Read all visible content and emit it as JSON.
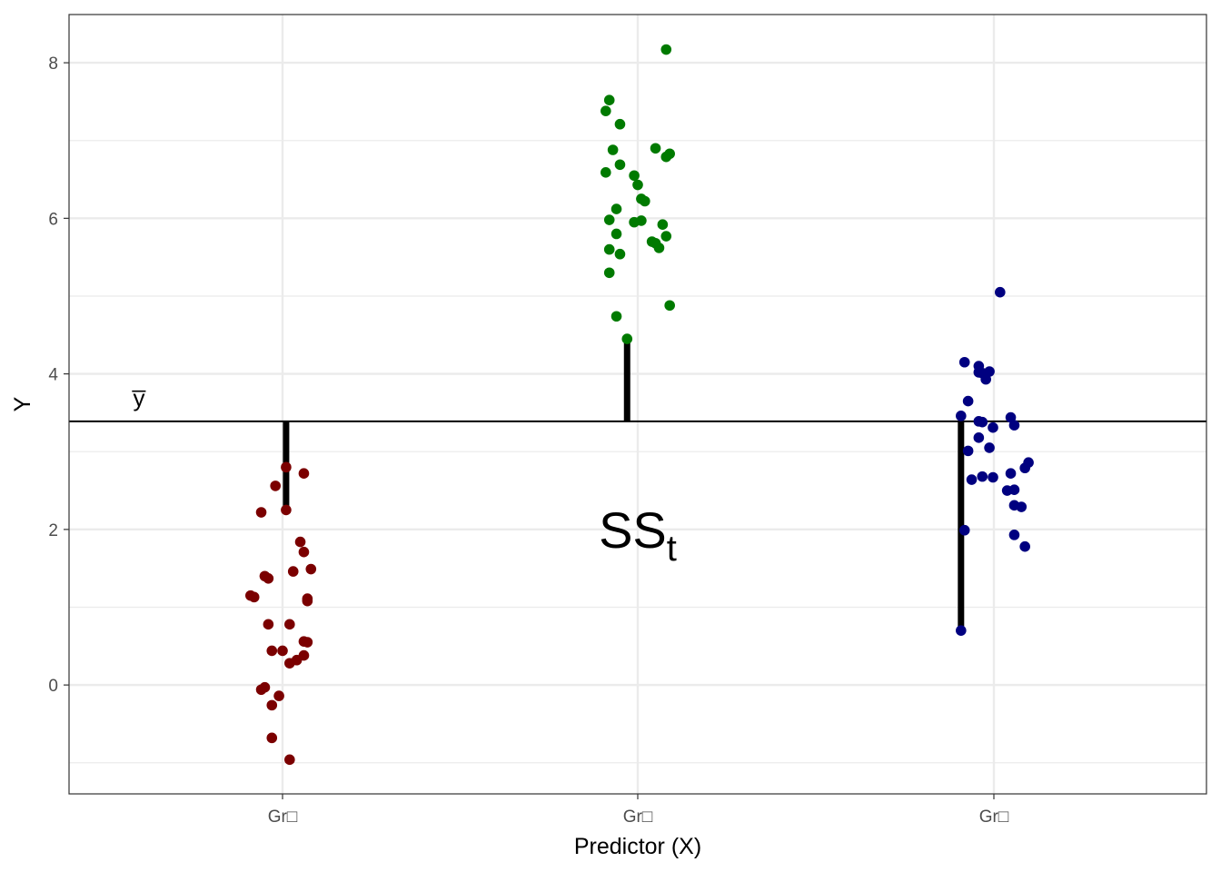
{
  "chart_data": {
    "type": "scatter",
    "title": "",
    "xlabel": "Predictor (X)",
    "ylabel": "Y",
    "categories": [
      "Gr□",
      "Gr□",
      "Gr□"
    ],
    "ylim": [
      -1.4,
      8.62
    ],
    "y_ticks": [
      0,
      2,
      4,
      6,
      8
    ],
    "y_tick_labels": [
      "0",
      "2",
      "4",
      "6",
      "8"
    ],
    "grid": true,
    "legend": "none",
    "grand_mean": 3.39,
    "mean_label": "y̅",
    "annotation": {
      "base": "SS",
      "subscript": "t",
      "x_group": 2,
      "y": 2.0
    },
    "colors": [
      "#7b0000",
      "#007a00",
      "#000080"
    ],
    "series": [
      {
        "group": 1,
        "points": [
          [
            0.98,
            2.56
          ],
          [
            0.94,
            2.22
          ],
          [
            1.01,
            2.8
          ],
          [
            1.06,
            2.72
          ],
          [
            1.01,
            2.25
          ],
          [
            1.05,
            1.84
          ],
          [
            1.06,
            1.71
          ],
          [
            1.08,
            1.49
          ],
          [
            1.03,
            1.46
          ],
          [
            0.95,
            1.4
          ],
          [
            0.96,
            1.37
          ],
          [
            0.91,
            1.15
          ],
          [
            0.92,
            1.13
          ],
          [
            1.07,
            1.11
          ],
          [
            1.07,
            1.08
          ],
          [
            0.96,
            0.78
          ],
          [
            1.02,
            0.78
          ],
          [
            1.06,
            0.56
          ],
          [
            1.07,
            0.55
          ],
          [
            0.97,
            0.44
          ],
          [
            1.0,
            0.44
          ],
          [
            1.06,
            0.38
          ],
          [
            1.04,
            0.32
          ],
          [
            1.02,
            0.28
          ],
          [
            0.95,
            -0.03
          ],
          [
            0.94,
            -0.06
          ],
          [
            0.99,
            -0.14
          ],
          [
            0.97,
            -0.26
          ],
          [
            0.97,
            -0.68
          ],
          [
            1.02,
            -0.96
          ]
        ]
      },
      {
        "group": 2,
        "points": [
          [
            2.08,
            8.17
          ],
          [
            1.92,
            7.52
          ],
          [
            1.91,
            7.38
          ],
          [
            1.95,
            7.21
          ],
          [
            1.93,
            6.88
          ],
          [
            2.05,
            6.9
          ],
          [
            2.09,
            6.83
          ],
          [
            2.08,
            6.79
          ],
          [
            1.95,
            6.69
          ],
          [
            1.91,
            6.59
          ],
          [
            1.99,
            6.55
          ],
          [
            2.0,
            6.43
          ],
          [
            2.01,
            6.25
          ],
          [
            2.02,
            6.22
          ],
          [
            1.94,
            6.12
          ],
          [
            1.92,
            5.98
          ],
          [
            2.01,
            5.97
          ],
          [
            1.99,
            5.95
          ],
          [
            2.07,
            5.92
          ],
          [
            1.94,
            5.8
          ],
          [
            2.08,
            5.77
          ],
          [
            2.04,
            5.7
          ],
          [
            2.05,
            5.68
          ],
          [
            2.06,
            5.62
          ],
          [
            1.92,
            5.6
          ],
          [
            1.95,
            5.54
          ],
          [
            1.92,
            5.3
          ],
          [
            2.09,
            4.88
          ],
          [
            1.94,
            4.74
          ],
          [
            1.97,
            4.45
          ]
        ]
      },
      {
        "group": 3,
        "points": [
          [
            3.02,
            5.05
          ],
          [
            2.92,
            4.15
          ],
          [
            2.96,
            4.1
          ],
          [
            2.96,
            4.02
          ],
          [
            2.97,
            4.01
          ],
          [
            2.99,
            4.03
          ],
          [
            2.98,
            3.93
          ],
          [
            2.93,
            3.65
          ],
          [
            2.91,
            3.46
          ],
          [
            3.05,
            3.44
          ],
          [
            3.06,
            3.34
          ],
          [
            2.96,
            3.39
          ],
          [
            2.97,
            3.38
          ],
          [
            3.0,
            3.31
          ],
          [
            2.96,
            3.18
          ],
          [
            2.99,
            3.05
          ],
          [
            2.93,
            3.01
          ],
          [
            3.1,
            2.86
          ],
          [
            3.09,
            2.79
          ],
          [
            3.05,
            2.72
          ],
          [
            2.97,
            2.68
          ],
          [
            3.0,
            2.67
          ],
          [
            2.94,
            2.64
          ],
          [
            3.04,
            2.5
          ],
          [
            3.06,
            2.51
          ],
          [
            3.08,
            2.29
          ],
          [
            3.06,
            2.31
          ],
          [
            2.92,
            1.99
          ],
          [
            3.06,
            1.93
          ],
          [
            3.09,
            1.78
          ],
          [
            2.91,
            0.7
          ]
        ]
      }
    ],
    "deviation_segments": [
      {
        "x": 1.01,
        "y_from": 3.39,
        "y_to": 2.25
      },
      {
        "x": 1.97,
        "y_from": 3.39,
        "y_to": 4.45
      },
      {
        "x": 2.91,
        "y_from": 3.39,
        "y_to": 0.7
      }
    ]
  }
}
